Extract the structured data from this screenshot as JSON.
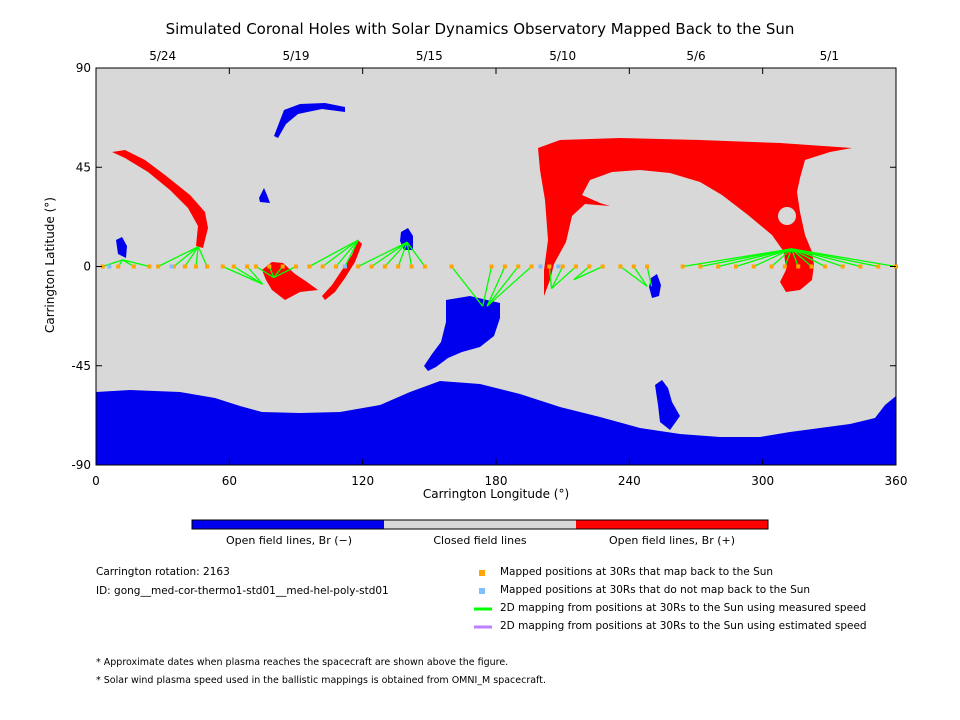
{
  "title": "Simulated Coronal Holes with Solar Dynamics Observatory Mapped Back to the Sun",
  "chart_data": {
    "type": "map",
    "xlabel": "Carrington Longitude (°)",
    "ylabel": "Carrington Latitude (°)",
    "xlim": [
      0,
      360
    ],
    "ylim": [
      -90,
      90
    ],
    "xticks": [
      "0",
      "60",
      "120",
      "180",
      "240",
      "300",
      "360"
    ],
    "yticks": [
      "90",
      "45",
      "0",
      "-45",
      "-90"
    ],
    "top_axis_dates": [
      {
        "label": "5/24",
        "lon": 30
      },
      {
        "label": "5/19",
        "lon": 90
      },
      {
        "label": "5/15",
        "lon": 150
      },
      {
        "label": "5/10",
        "lon": 210
      },
      {
        "label": "5/6",
        "lon": 270
      },
      {
        "label": "5/1",
        "lon": 330
      }
    ],
    "colors": {
      "closed": "#d8d8d8",
      "open_negative": "#0000ee",
      "open_positive": "#ff0000",
      "mapped": "#ffa500",
      "not_mapped": "#80bfff",
      "measured_line": "#00ff00",
      "estimated_line": "#bf80ff"
    },
    "colorbar": [
      {
        "label": "Open field lines, Br (−)",
        "color": "#0000ee"
      },
      {
        "label": "Closed field lines",
        "color": "#d8d8d8"
      },
      {
        "label": "Open field lines, Br (+)",
        "color": "#ff0000"
      }
    ],
    "mappings": [
      {
        "sc_lon": 3,
        "sun_lon": 12,
        "sun_lat": 3
      },
      {
        "sc_lon": 10,
        "sun_lon": 12,
        "sun_lat": 3
      },
      {
        "sc_lon": 17,
        "sun_lon": 12,
        "sun_lat": 3
      },
      {
        "sc_lon": 24,
        "sun_lon": 12,
        "sun_lat": 3
      },
      {
        "sc_lon": 28,
        "sun_lon": 46,
        "sun_lat": 9
      },
      {
        "sc_lon": 35,
        "sun_lon": 46,
        "sun_lat": 9
      },
      {
        "sc_lon": 40,
        "sun_lon": 46,
        "sun_lat": 9
      },
      {
        "sc_lon": 45,
        "sun_lon": 46,
        "sun_lat": 9
      },
      {
        "sc_lon": 50,
        "sun_lon": 46,
        "sun_lat": 9
      },
      {
        "sc_lon": 57,
        "sun_lon": 75,
        "sun_lat": -8
      },
      {
        "sc_lon": 62,
        "sun_lon": 75,
        "sun_lat": -8
      },
      {
        "sc_lon": 68,
        "sun_lon": 75,
        "sun_lat": -8
      },
      {
        "sc_lon": 72,
        "sun_lon": 80,
        "sun_lat": -5
      },
      {
        "sc_lon": 78,
        "sun_lon": 80,
        "sun_lat": -5
      },
      {
        "sc_lon": 84,
        "sun_lon": 80,
        "sun_lat": -5
      },
      {
        "sc_lon": 90,
        "sun_lon": 80,
        "sun_lat": -5
      },
      {
        "sc_lon": 96,
        "sun_lon": 118,
        "sun_lat": 12
      },
      {
        "sc_lon": 102,
        "sun_lon": 118,
        "sun_lat": 12
      },
      {
        "sc_lon": 108,
        "sun_lon": 118,
        "sun_lat": 12
      },
      {
        "sc_lon": 112,
        "sun_lon": 118,
        "sun_lat": 12
      },
      {
        "sc_lon": 118,
        "sun_lon": 140,
        "sun_lat": 11
      },
      {
        "sc_lon": 124,
        "sun_lon": 140,
        "sun_lat": 11
      },
      {
        "sc_lon": 130,
        "sun_lon": 140,
        "sun_lat": 11
      },
      {
        "sc_lon": 136,
        "sun_lon": 140,
        "sun_lat": 11
      },
      {
        "sc_lon": 142,
        "sun_lon": 140,
        "sun_lat": 11
      },
      {
        "sc_lon": 148,
        "sun_lon": 140,
        "sun_lat": 11
      },
      {
        "sc_lon": 160,
        "sun_lon": 174,
        "sun_lat": -18
      },
      {
        "sc_lon": 178,
        "sun_lon": 174,
        "sun_lat": -18
      },
      {
        "sc_lon": 184,
        "sun_lon": 176,
        "sun_lat": -18
      },
      {
        "sc_lon": 190,
        "sun_lon": 176,
        "sun_lat": -18
      },
      {
        "sc_lon": 196,
        "sun_lon": 176,
        "sun_lat": -18
      },
      {
        "sc_lon": 204,
        "sun_lon": 205,
        "sun_lat": -10
      },
      {
        "sc_lon": 210,
        "sun_lon": 205,
        "sun_lat": -10
      },
      {
        "sc_lon": 216,
        "sun_lon": 205,
        "sun_lat": -10
      },
      {
        "sc_lon": 222,
        "sun_lon": 215,
        "sun_lat": -6
      },
      {
        "sc_lon": 228,
        "sun_lon": 215,
        "sun_lat": -6
      },
      {
        "sc_lon": 236,
        "sun_lon": 248,
        "sun_lat": -9
      },
      {
        "sc_lon": 242,
        "sun_lon": 248,
        "sun_lat": -9
      },
      {
        "sc_lon": 248,
        "sun_lon": 250,
        "sun_lat": -9
      },
      {
        "sc_lon": 264,
        "sun_lon": 313,
        "sun_lat": 8
      },
      {
        "sc_lon": 272,
        "sun_lon": 313,
        "sun_lat": 8
      },
      {
        "sc_lon": 280,
        "sun_lon": 313,
        "sun_lat": 8
      },
      {
        "sc_lon": 288,
        "sun_lon": 313,
        "sun_lat": 8
      },
      {
        "sc_lon": 296,
        "sun_lon": 313,
        "sun_lat": 8
      },
      {
        "sc_lon": 304,
        "sun_lon": 313,
        "sun_lat": 8
      },
      {
        "sc_lon": 310,
        "sun_lon": 313,
        "sun_lat": 8
      },
      {
        "sc_lon": 316,
        "sun_lon": 313,
        "sun_lat": 8
      },
      {
        "sc_lon": 322,
        "sun_lon": 313,
        "sun_lat": 8
      },
      {
        "sc_lon": 328,
        "sun_lon": 313,
        "sun_lat": 8
      },
      {
        "sc_lon": 336,
        "sun_lon": 313,
        "sun_lat": 8
      },
      {
        "sc_lon": 344,
        "sun_lon": 313,
        "sun_lat": 8
      },
      {
        "sc_lon": 352,
        "sun_lon": 313,
        "sun_lat": 8
      },
      {
        "sc_lon": 360,
        "sun_lon": 313,
        "sun_lat": 8
      }
    ],
    "unmapped_lons": [
      6,
      34,
      112,
      200,
      208
    ]
  },
  "info": {
    "rotation": "Carrington rotation: 2163",
    "id": "ID: gong__med-cor-thermo1-std01__med-hel-poly-std01"
  },
  "legend": [
    {
      "label": "Mapped positions at 30Rs that map back to the Sun",
      "kind": "square",
      "color": "#ffa500"
    },
    {
      "label": "Mapped positions at 30Rs that do not map back to the Sun",
      "kind": "square",
      "color": "#80bfff"
    },
    {
      "label": "2D mapping from positions at 30Rs to the Sun using measured speed",
      "kind": "line",
      "color": "#00ff00"
    },
    {
      "label": "2D mapping from positions at 30Rs to the Sun using estimated speed",
      "kind": "line",
      "color": "#bf80ff"
    }
  ],
  "notes": [
    "* Approximate dates when plasma reaches the spacecraft are shown above the figure.",
    "* Solar wind plasma speed used in the ballistic mappings is obtained from OMNI_M spacecraft."
  ]
}
